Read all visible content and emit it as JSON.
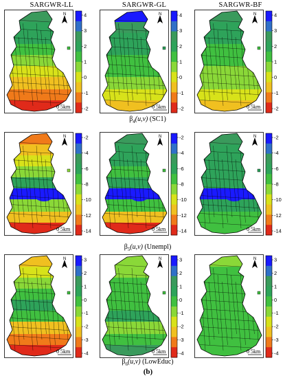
{
  "columns": [
    "SARGWR-LL",
    "SARGWR-GL",
    "SARGWR-BF"
  ],
  "scale_label": "0  5km",
  "north_label": "N",
  "footer": "(b)",
  "row_labels": [
    {
      "greek": "β",
      "sub": "4",
      "args": "(u,v)",
      "name": "(SC1)"
    },
    {
      "greek": "β",
      "sub": "5",
      "args": "(u,v)",
      "name": "(Unempl)"
    },
    {
      "greek": "β",
      "sub": "6",
      "args": "(u,v)",
      "name": "(LowEduc)"
    }
  ],
  "chart_data": [
    {
      "type": "heatmap",
      "title": "β4(u,v) (SC1)",
      "colorbar_ticks": [
        "4",
        "3",
        "2",
        "1",
        "0",
        "-1",
        "-2"
      ],
      "colorbar_colors": [
        "#1a1aff",
        "#3070c8",
        "#3a9a5c",
        "#2ea35a",
        "#40c040",
        "#8ad838",
        "#d8e21a",
        "#f0c020",
        "#f07a1a",
        "#e02a1a"
      ],
      "maps": [
        "SARGWR-LL",
        "SARGWR-GL",
        "SARGWR-BF"
      ]
    },
    {
      "type": "heatmap",
      "title": "β5(u,v) (Unempl)",
      "colorbar_ticks": [
        "-2",
        "-4",
        "-6",
        "-8",
        "-10",
        "-12",
        "-14"
      ],
      "colorbar_colors": [
        "#1a1aff",
        "#3070c8",
        "#3a9a5c",
        "#2ea35a",
        "#40c040",
        "#8ad838",
        "#d8e21a",
        "#f0c020",
        "#f07a1a",
        "#e02a1a"
      ],
      "maps": [
        "SARGWR-LL",
        "SARGWR-GL",
        "SARGWR-BF"
      ]
    },
    {
      "type": "heatmap",
      "title": "β6(u,v) (LowEduc)",
      "colorbar_ticks": [
        "3",
        "2",
        "1",
        "0",
        "-1",
        "-2",
        "-3",
        "-4"
      ],
      "colorbar_colors": [
        "#1a1aff",
        "#3070c8",
        "#3a9a5c",
        "#2ea35a",
        "#40c040",
        "#8ad838",
        "#d8e21a",
        "#f0c020",
        "#f07a1a",
        "#e02a1a"
      ],
      "maps": [
        "SARGWR-LL",
        "SARGWR-GL",
        "SARGWR-BF"
      ]
    }
  ]
}
